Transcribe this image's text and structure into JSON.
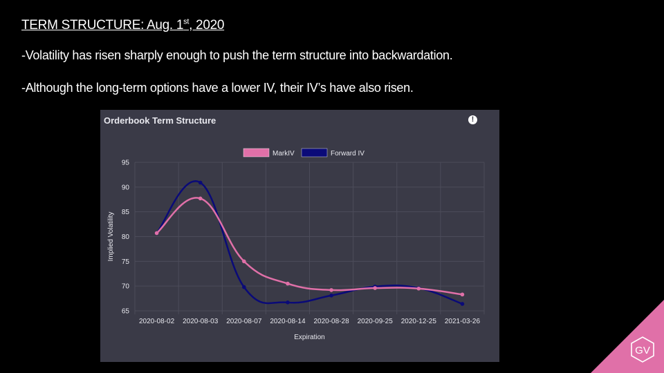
{
  "slide": {
    "title_pre": "TERM STRUCTURE: Aug. 1",
    "title_sup": "st",
    "title_post": ", 2020",
    "bullet_1": "-Volatility has risen sharply enough to push the term structure into backwardation.",
    "bullet_2": "-Although the long-term options have a lower IV, their IV’s have also risen."
  },
  "panel": {
    "title": "Orderbook Term Structure",
    "info_icon": "!"
  },
  "logo": {
    "text": "GV",
    "color": "#e070a8"
  },
  "chart_data": {
    "type": "line",
    "title": "Orderbook Term Structure",
    "xlabel": "Expiration",
    "ylabel": "Implied Volatility",
    "categories": [
      "2020-08-02",
      "2020-08-03",
      "2020-08-07",
      "2020-08-14",
      "2020-08-28",
      "2020-09-25",
      "2020-12-25",
      "2021-03-26"
    ],
    "ylim": [
      65,
      95
    ],
    "yticks": [
      65,
      70,
      75,
      80,
      85,
      90,
      95
    ],
    "grid": true,
    "legend_position": "top",
    "series": [
      {
        "name": "MarkIV",
        "color": "#e070a8",
        "values": [
          80.7,
          87.7,
          75.0,
          70.5,
          69.2,
          69.6,
          69.5,
          68.3
        ]
      },
      {
        "name": "Forward IV",
        "color": "#0a0a78",
        "values": [
          80.7,
          90.9,
          69.8,
          66.7,
          68.1,
          69.9,
          69.6,
          66.4
        ]
      }
    ]
  }
}
